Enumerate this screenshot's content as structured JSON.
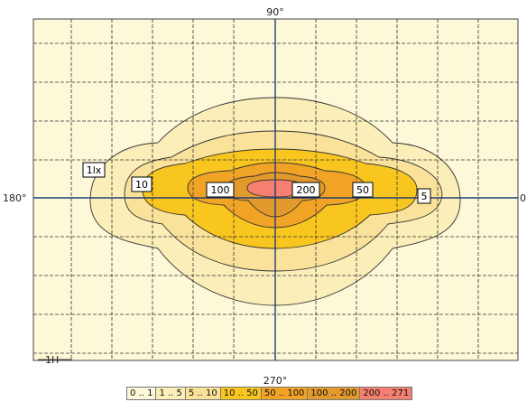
{
  "chart_data": {
    "type": "contour",
    "title": "",
    "axis_labels": {
      "top": "90°",
      "bottom": "270°",
      "left": "180°",
      "right": "0"
    },
    "corner_label": "1H",
    "grid": true,
    "levels": [
      {
        "range": "0 .. 1",
        "color": "#fdf8d8"
      },
      {
        "range": "1 .. 5",
        "color": "#fbeeb8"
      },
      {
        "range": "5 .. 10",
        "color": "#fae29a"
      },
      {
        "range": "10 .. 50",
        "color": "#f9c61f"
      },
      {
        "range": "50 .. 100",
        "color": "#f1a325"
      },
      {
        "range": "100 .. 200",
        "color": "#e39a2c"
      },
      {
        "range": "200 .. 271",
        "color": "#f58070"
      }
    ],
    "contour_labels": [
      "1lx",
      "10",
      "100",
      "200",
      "50",
      "5"
    ],
    "max_value": 271
  }
}
